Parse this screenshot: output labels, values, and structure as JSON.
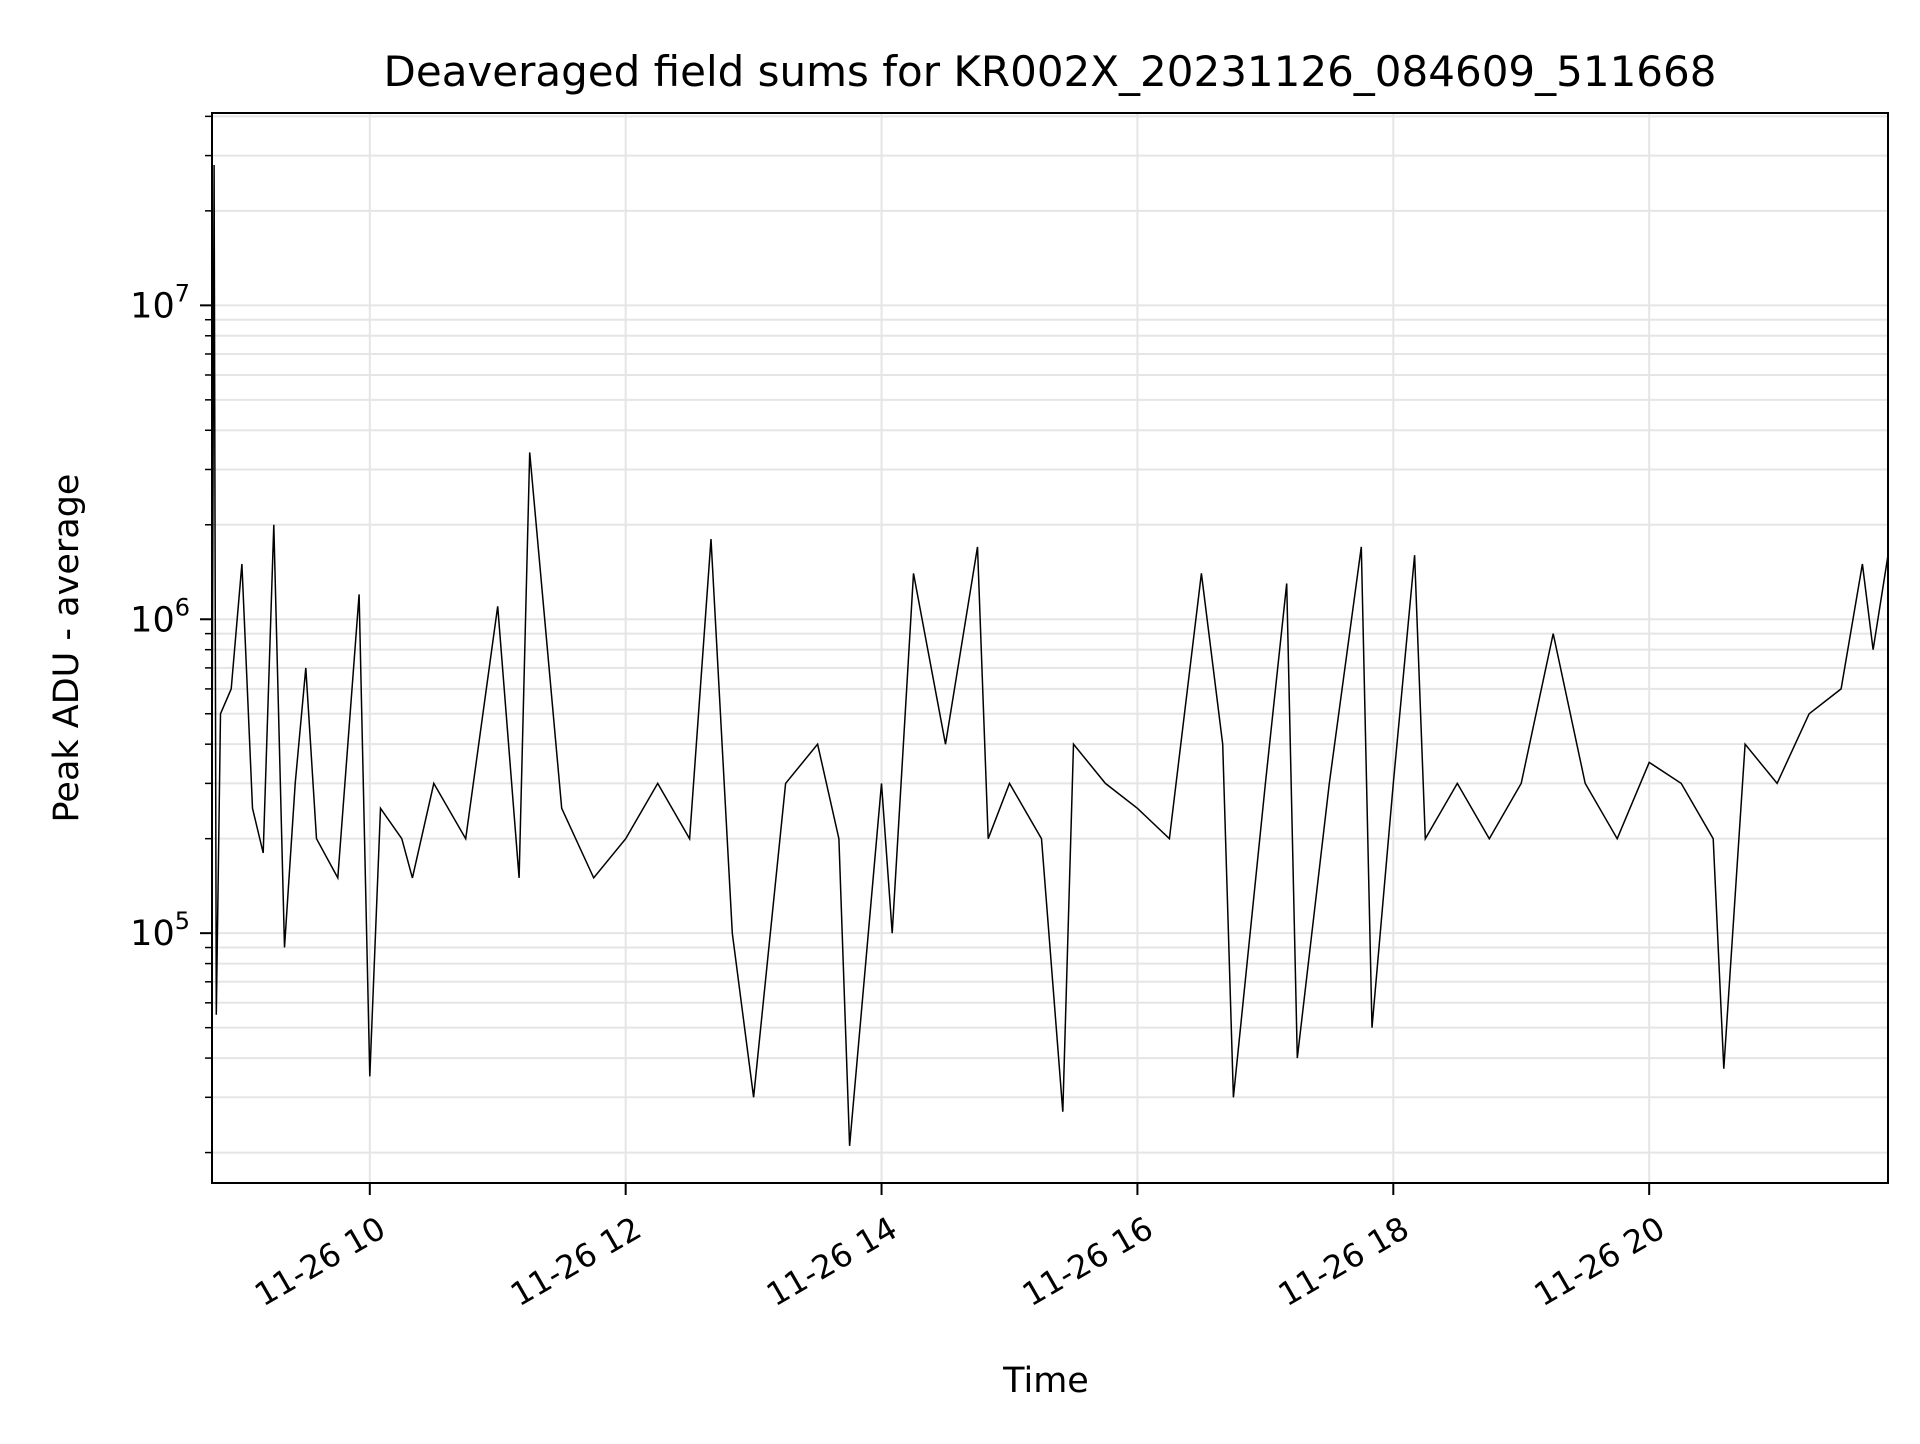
{
  "chart_data": {
    "type": "line",
    "title": "Deaveraged field sums for KR002X_20231126_084609_511668",
    "xlabel": "Time",
    "ylabel": "Peak ADU - average",
    "yscale": "log",
    "xlim": [
      "2023-11-26 08:46",
      "2023-11-26 21:52"
    ],
    "ylim": [
      16000,
      41000000
    ],
    "x_tick_labels": [
      "11-26 10",
      "11-26 12",
      "11-26 14",
      "11-26 16",
      "11-26 18",
      "11-26 20"
    ],
    "x_tick_values": [
      "2023-11-26 10:00",
      "2023-11-26 12:00",
      "2023-11-26 14:00",
      "2023-11-26 16:00",
      "2023-11-26 18:00",
      "2023-11-26 20:00"
    ],
    "y_tick_labels": [
      {
        "base": "10",
        "exp": "5"
      },
      {
        "base": "10",
        "exp": "6"
      },
      {
        "base": "10",
        "exp": "7"
      }
    ],
    "y_tick_values": [
      100000,
      1000000,
      10000000
    ],
    "grid": true,
    "legend": "none",
    "line_color": "#000000",
    "grid_color": "#e5e5e5",
    "series": [
      {
        "x": [
          "2023-11-26 08:46",
          "2023-11-26 08:47",
          "2023-11-26 08:48",
          "2023-11-26 08:50",
          "2023-11-26 08:55",
          "2023-11-26 09:00",
          "2023-11-26 09:05",
          "2023-11-26 09:10",
          "2023-11-26 09:15",
          "2023-11-26 09:20",
          "2023-11-26 09:25",
          "2023-11-26 09:30",
          "2023-11-26 09:35",
          "2023-11-26 09:45",
          "2023-11-26 09:55",
          "2023-11-26 10:00",
          "2023-11-26 10:05",
          "2023-11-26 10:15",
          "2023-11-26 10:20",
          "2023-11-26 10:30",
          "2023-11-26 10:45",
          "2023-11-26 11:00",
          "2023-11-26 11:10",
          "2023-11-26 11:15",
          "2023-11-26 11:30",
          "2023-11-26 11:45",
          "2023-11-26 12:00",
          "2023-11-26 12:15",
          "2023-11-26 12:30",
          "2023-11-26 12:40",
          "2023-11-26 12:50",
          "2023-11-26 13:00",
          "2023-11-26 13:15",
          "2023-11-26 13:30",
          "2023-11-26 13:40",
          "2023-11-26 13:45",
          "2023-11-26 14:00",
          "2023-11-26 14:05",
          "2023-11-26 14:15",
          "2023-11-26 14:30",
          "2023-11-26 14:45",
          "2023-11-26 14:50",
          "2023-11-26 15:00",
          "2023-11-26 15:15",
          "2023-11-26 15:25",
          "2023-11-26 15:30",
          "2023-11-26 15:45",
          "2023-11-26 16:00",
          "2023-11-26 16:15",
          "2023-11-26 16:30",
          "2023-11-26 16:40",
          "2023-11-26 16:45",
          "2023-11-26 17:00",
          "2023-11-26 17:10",
          "2023-11-26 17:15",
          "2023-11-26 17:30",
          "2023-11-26 17:45",
          "2023-11-26 17:50",
          "2023-11-26 18:00",
          "2023-11-26 18:10",
          "2023-11-26 18:15",
          "2023-11-26 18:30",
          "2023-11-26 18:45",
          "2023-11-26 19:00",
          "2023-11-26 19:15",
          "2023-11-26 19:30",
          "2023-11-26 19:45",
          "2023-11-26 20:00",
          "2023-11-26 20:15",
          "2023-11-26 20:30",
          "2023-11-26 20:35",
          "2023-11-26 20:45",
          "2023-11-26 21:00",
          "2023-11-26 21:15",
          "2023-11-26 21:30",
          "2023-11-26 21:40",
          "2023-11-26 21:45",
          "2023-11-26 21:52"
        ],
        "y": [
          300000,
          28000000,
          55000,
          500000,
          600000,
          1500000,
          250000,
          180000,
          2000000,
          90000,
          300000,
          700000,
          200000,
          150000,
          1200000,
          35000,
          250000,
          200000,
          150000,
          300000,
          200000,
          1100000,
          150000,
          3400000,
          250000,
          150000,
          200000,
          300000,
          200000,
          1800000,
          100000,
          30000,
          300000,
          400000,
          200000,
          21000,
          300000,
          100000,
          1400000,
          400000,
          1700000,
          200000,
          300000,
          200000,
          27000,
          400000,
          300000,
          250000,
          200000,
          1400000,
          400000,
          30000,
          300000,
          1300000,
          40000,
          300000,
          1700000,
          50000,
          300000,
          1600000,
          200000,
          300000,
          200000,
          300000,
          900000,
          300000,
          200000,
          350000,
          300000,
          200000,
          37000,
          400000,
          300000,
          500000,
          600000,
          1500000,
          800000,
          1600000
        ]
      }
    ]
  }
}
